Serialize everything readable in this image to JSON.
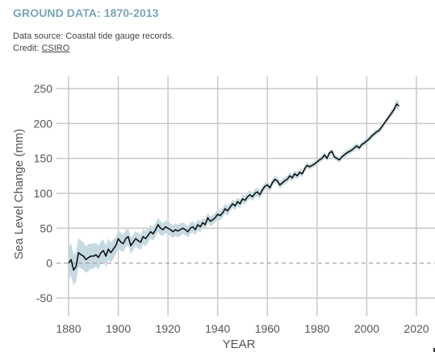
{
  "header": {
    "title": "GROUND DATA: 1870-2013",
    "source_text": "Data source: Coastal tide gauge records.",
    "credit_prefix": "Credit: ",
    "credit_link": "CSIRO"
  },
  "colors": {
    "title": "#7aa6b8",
    "line": "#111111",
    "band": "#c5dae2",
    "grid": "#c8c8c8",
    "zero_line": "#999999"
  },
  "chart_data": {
    "type": "line",
    "title": "",
    "xlabel": "YEAR",
    "ylabel": "Sea Level Change (mm)",
    "xlim": [
      1875,
      2022
    ],
    "ylim": [
      -60,
      260
    ],
    "xticks": [
      1880,
      1900,
      1920,
      1940,
      1960,
      1980,
      2000,
      2020
    ],
    "yticks": [
      -50,
      0,
      50,
      100,
      150,
      200,
      250
    ],
    "grid": true,
    "zero_line": "dashed",
    "series": [
      {
        "x": [
          1880,
          1881,
          1882,
          1883,
          1884,
          1885,
          1886,
          1887,
          1888,
          1889,
          1890,
          1891,
          1892,
          1893,
          1894,
          1895,
          1896,
          1897,
          1898,
          1899,
          1900,
          1901,
          1902,
          1903,
          1904,
          1905,
          1906,
          1907,
          1908,
          1909,
          1910,
          1911,
          1912,
          1913,
          1914,
          1915,
          1916,
          1917,
          1918,
          1919,
          1920,
          1921,
          1922,
          1923,
          1924,
          1925,
          1926,
          1927,
          1928,
          1929,
          1930,
          1931,
          1932,
          1933,
          1934,
          1935,
          1936,
          1937,
          1938,
          1939,
          1940,
          1941,
          1942,
          1943,
          1944,
          1945,
          1946,
          1947,
          1948,
          1949,
          1950,
          1951,
          1952,
          1953,
          1954,
          1955,
          1956,
          1957,
          1958,
          1959,
          1960,
          1961,
          1962,
          1963,
          1964,
          1965,
          1966,
          1967,
          1968,
          1969,
          1970,
          1971,
          1972,
          1973,
          1974,
          1975,
          1976,
          1977,
          1978,
          1979,
          1980,
          1981,
          1982,
          1983,
          1984,
          1985,
          1986,
          1987,
          1988,
          1989,
          1990,
          1991,
          1992,
          1993,
          1994,
          1995,
          1996,
          1997,
          1998,
          1999,
          2000,
          2001,
          2002,
          2003,
          2004,
          2005,
          2006,
          2007,
          2008,
          2009,
          2010,
          2011,
          2012,
          2013
        ],
        "values": [
          0,
          5,
          -10,
          -5,
          15,
          12,
          10,
          5,
          8,
          10,
          10,
          12,
          8,
          15,
          18,
          10,
          20,
          15,
          20,
          25,
          35,
          30,
          28,
          35,
          38,
          25,
          30,
          35,
          32,
          30,
          38,
          35,
          40,
          45,
          42,
          48,
          55,
          50,
          48,
          52,
          50,
          48,
          45,
          48,
          46,
          48,
          50,
          48,
          45,
          50,
          52,
          48,
          55,
          52,
          58,
          55,
          65,
          60,
          62,
          65,
          70,
          68,
          72,
          78,
          75,
          80,
          85,
          82,
          88,
          85,
          92,
          90,
          95,
          98,
          95,
          100,
          102,
          98,
          105,
          110,
          112,
          108,
          115,
          120,
          118,
          112,
          115,
          118,
          120,
          125,
          122,
          128,
          125,
          130,
          128,
          135,
          140,
          138,
          140,
          142,
          145,
          148,
          150,
          155,
          150,
          158,
          160,
          152,
          150,
          148,
          152,
          155,
          158,
          160,
          162,
          165,
          168,
          165,
          170,
          172,
          175,
          178,
          182,
          185,
          188,
          190,
          195,
          200,
          205,
          210,
          215,
          220,
          228,
          225
        ],
        "band": [
          24,
          23,
          22,
          21,
          21,
          20,
          20,
          19,
          19,
          18,
          18,
          17,
          17,
          16,
          16,
          15,
          15,
          14,
          14,
          13,
          13,
          13,
          12,
          12,
          12,
          12,
          11,
          11,
          11,
          11,
          11,
          11,
          10,
          10,
          10,
          10,
          10,
          10,
          9,
          9,
          9,
          9,
          9,
          9,
          9,
          9,
          8,
          8,
          8,
          8,
          8,
          8,
          8,
          8,
          7,
          7,
          7,
          7,
          7,
          7,
          7,
          7,
          7,
          7,
          7,
          6,
          6,
          6,
          6,
          6,
          6,
          6,
          6,
          6,
          6,
          6,
          6,
          6,
          5,
          5,
          5,
          5,
          5,
          5,
          5,
          5,
          5,
          5,
          5,
          5,
          5,
          5,
          5,
          5,
          5,
          4,
          4,
          4,
          4,
          4,
          4,
          4,
          4,
          4,
          4,
          4,
          4,
          4,
          4,
          4,
          4,
          4,
          4,
          4,
          4,
          4,
          4,
          4,
          4,
          4,
          4,
          4,
          4,
          4,
          4,
          4,
          4,
          4,
          4,
          4,
          5,
          5,
          6,
          7
        ]
      }
    ]
  }
}
